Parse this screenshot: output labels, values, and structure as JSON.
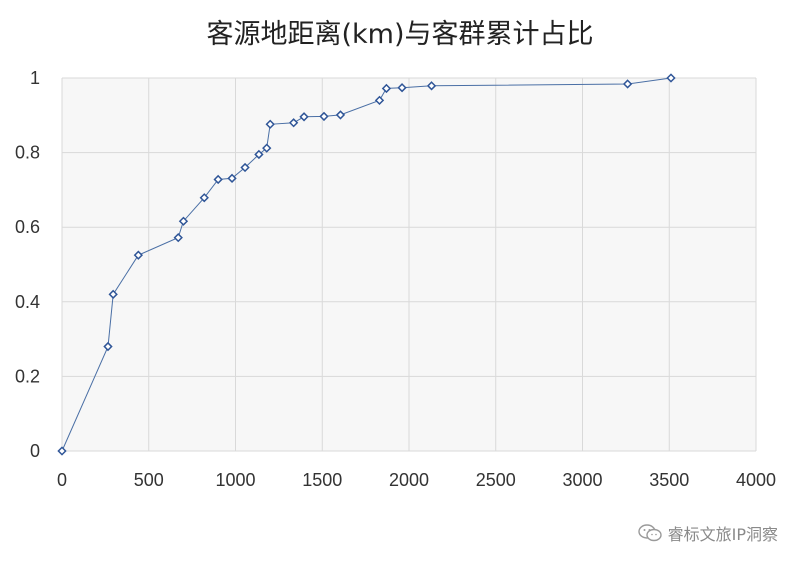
{
  "watermark": {
    "text": "睿标文旅IP洞察",
    "icon": "wechat-icon"
  },
  "colors": {
    "series": "#4a6fa5",
    "marker_stroke": "#2f5597",
    "grid": "#d9d9d9",
    "plot_bg": "#f7f7f7"
  },
  "chart_data": {
    "type": "scatter",
    "title": "客源地距离(km)与客群累计占比",
    "xlabel": "",
    "ylabel": "",
    "xlim": [
      0,
      4000
    ],
    "ylim": [
      0,
      1
    ],
    "x_ticks": [
      "0",
      "500",
      "1000",
      "1500",
      "2000",
      "2500",
      "3000",
      "3500",
      "4000"
    ],
    "y_ticks": [
      "0",
      "0.2",
      "0.4",
      "0.6",
      "0.8",
      "1"
    ],
    "grid": true,
    "legend": "none",
    "line_style": "straight lines with diamond markers",
    "series": [
      {
        "points": [
          [
            0,
            0.0
          ],
          [
            265,
            0.28
          ],
          [
            295,
            0.42
          ],
          [
            440,
            0.525
          ],
          [
            670,
            0.572
          ],
          [
            700,
            0.616
          ],
          [
            820,
            0.679
          ],
          [
            900,
            0.728
          ],
          [
            980,
            0.731
          ],
          [
            1055,
            0.76
          ],
          [
            1135,
            0.795
          ],
          [
            1180,
            0.812
          ],
          [
            1200,
            0.876
          ],
          [
            1335,
            0.88
          ],
          [
            1395,
            0.896
          ],
          [
            1510,
            0.897
          ],
          [
            1605,
            0.901
          ],
          [
            1830,
            0.94
          ],
          [
            1870,
            0.972
          ],
          [
            1960,
            0.974
          ],
          [
            2130,
            0.979
          ],
          [
            3260,
            0.984
          ],
          [
            3510,
            1.0
          ]
        ]
      }
    ]
  }
}
